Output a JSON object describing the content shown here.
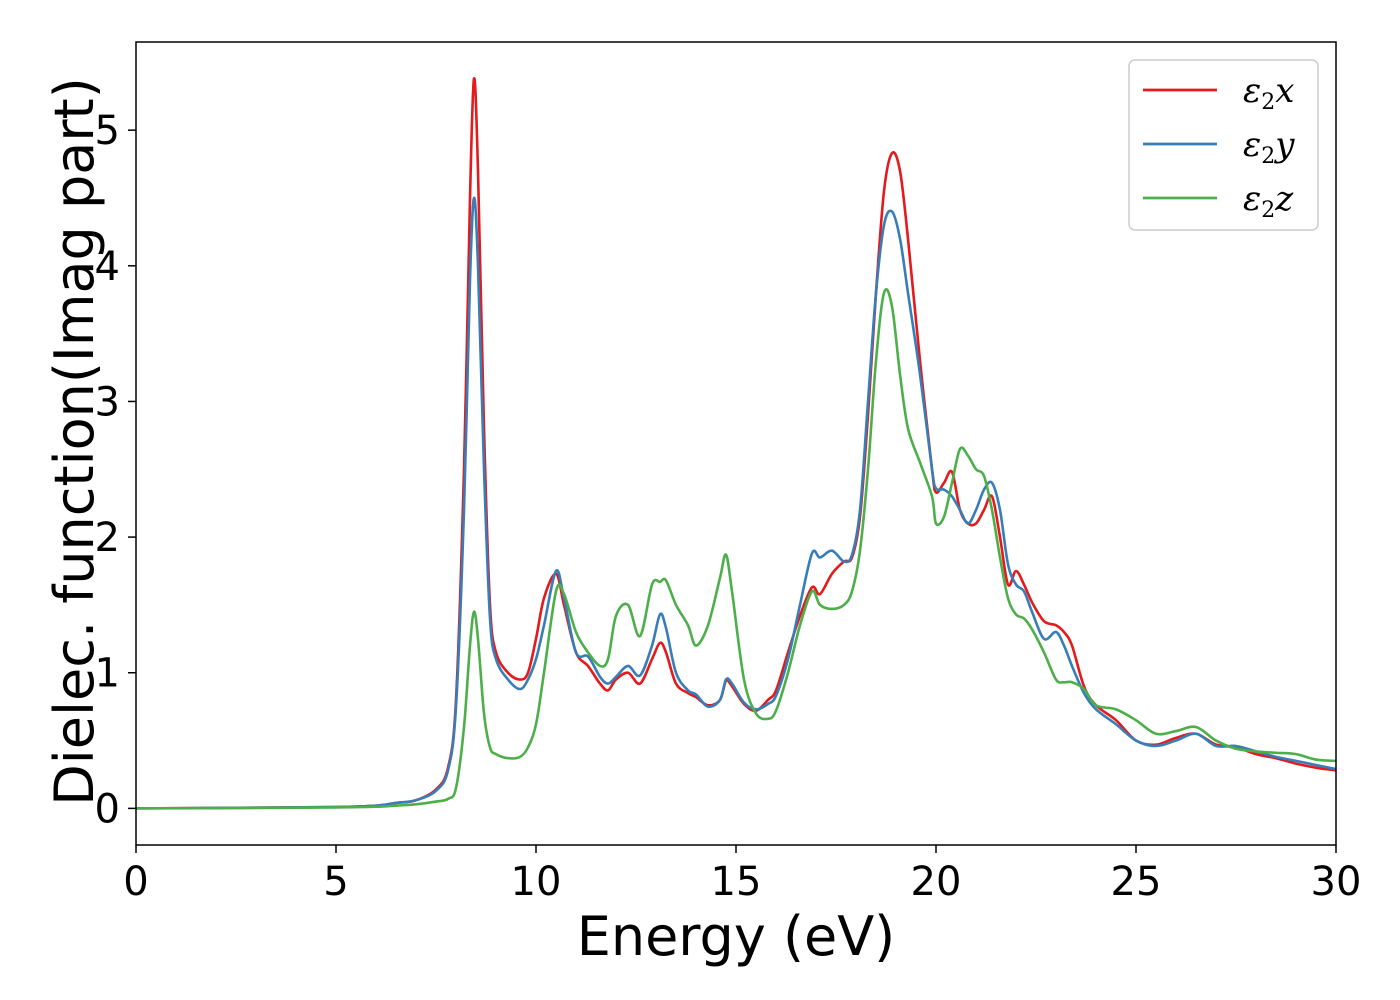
{
  "chart_data": {
    "type": "line",
    "xlabel": "Energy (eV)",
    "ylabel": "Dielec. function(Imag part)",
    "xlim": [
      0,
      30
    ],
    "ylim": [
      -0.27,
      5.65
    ],
    "xticks": [
      "0",
      "5",
      "10",
      "15",
      "20",
      "25",
      "30"
    ],
    "yticks": [
      "0",
      "1",
      "2",
      "3",
      "4",
      "5"
    ],
    "grid": false,
    "legend_position": "top-right",
    "series": [
      {
        "name": "ε₂x",
        "legend_main": "ε",
        "legend_sub": "2",
        "legend_tail": "x",
        "color": "#e41a1c",
        "x": [
          0,
          3,
          5,
          6,
          6.5,
          7,
          7.5,
          7.8,
          8.0,
          8.2,
          8.35,
          8.45,
          8.55,
          8.7,
          8.85,
          9.0,
          9.3,
          9.6,
          9.8,
          10.0,
          10.2,
          10.5,
          10.7,
          11.0,
          11.3,
          11.6,
          11.8,
          12.0,
          12.3,
          12.6,
          12.9,
          13.1,
          13.25,
          13.5,
          13.8,
          14.0,
          14.3,
          14.6,
          14.75,
          14.9,
          15.2,
          15.5,
          15.8,
          16.0,
          16.3,
          16.6,
          16.9,
          17.1,
          17.4,
          17.7,
          17.9,
          18.1,
          18.3,
          18.5,
          18.7,
          18.9,
          19.1,
          19.3,
          19.6,
          19.9,
          20.0,
          20.2,
          20.4,
          20.6,
          20.8,
          21.0,
          21.2,
          21.4,
          21.6,
          21.8,
          22.0,
          22.2,
          22.4,
          22.7,
          23.0,
          23.2,
          23.4,
          23.7,
          24.0,
          24.5,
          25.0,
          25.5,
          26.0,
          26.5,
          27.0,
          27.5,
          28.0,
          28.5,
          29.0,
          29.5,
          30.0
        ],
        "y": [
          0,
          0.005,
          0.01,
          0.02,
          0.04,
          0.06,
          0.14,
          0.3,
          0.8,
          2.5,
          4.5,
          5.38,
          4.7,
          2.8,
          1.5,
          1.15,
          1.0,
          0.95,
          1.0,
          1.25,
          1.55,
          1.73,
          1.5,
          1.15,
          1.05,
          0.92,
          0.87,
          0.95,
          1.0,
          0.92,
          1.1,
          1.22,
          1.15,
          0.92,
          0.85,
          0.82,
          0.76,
          0.8,
          0.94,
          0.9,
          0.77,
          0.72,
          0.8,
          0.87,
          1.15,
          1.42,
          1.63,
          1.58,
          1.73,
          1.82,
          1.85,
          2.15,
          2.9,
          3.8,
          4.55,
          4.83,
          4.7,
          4.2,
          3.3,
          2.5,
          2.33,
          2.4,
          2.48,
          2.2,
          2.1,
          2.1,
          2.2,
          2.3,
          2.0,
          1.65,
          1.75,
          1.65,
          1.52,
          1.38,
          1.35,
          1.3,
          1.2,
          0.9,
          0.76,
          0.65,
          0.5,
          0.47,
          0.52,
          0.55,
          0.47,
          0.45,
          0.4,
          0.37,
          0.33,
          0.3,
          0.28
        ]
      },
      {
        "name": "ε₂y",
        "legend_main": "ε",
        "legend_sub": "2",
        "legend_tail": "y",
        "color": "#377eb8",
        "x": [
          0,
          3,
          5,
          6,
          6.5,
          7,
          7.5,
          7.8,
          8.0,
          8.2,
          8.35,
          8.45,
          8.55,
          8.7,
          8.85,
          9.0,
          9.3,
          9.6,
          9.8,
          10.0,
          10.2,
          10.5,
          10.7,
          11.0,
          11.3,
          11.6,
          11.8,
          12.0,
          12.3,
          12.6,
          12.9,
          13.1,
          13.25,
          13.5,
          13.8,
          14.0,
          14.3,
          14.6,
          14.75,
          14.9,
          15.2,
          15.5,
          15.8,
          16.0,
          16.3,
          16.6,
          16.9,
          17.1,
          17.4,
          17.7,
          17.9,
          18.1,
          18.3,
          18.5,
          18.7,
          18.9,
          19.1,
          19.3,
          19.6,
          19.9,
          20.0,
          20.2,
          20.4,
          20.6,
          20.8,
          21.0,
          21.2,
          21.4,
          21.6,
          21.8,
          22.0,
          22.2,
          22.4,
          22.7,
          23.0,
          23.2,
          23.4,
          23.7,
          24.0,
          24.5,
          25.0,
          25.5,
          26.0,
          26.5,
          27.0,
          27.5,
          28.0,
          28.5,
          29.0,
          29.5,
          30.0
        ],
        "y": [
          0,
          0.005,
          0.01,
          0.02,
          0.04,
          0.06,
          0.13,
          0.28,
          0.75,
          2.2,
          3.9,
          4.5,
          4.0,
          2.5,
          1.4,
          1.1,
          0.95,
          0.88,
          0.95,
          1.1,
          1.35,
          1.75,
          1.55,
          1.15,
          1.12,
          0.97,
          0.92,
          0.97,
          1.05,
          0.98,
          1.2,
          1.43,
          1.33,
          1.0,
          0.87,
          0.84,
          0.75,
          0.8,
          0.95,
          0.92,
          0.78,
          0.73,
          0.77,
          0.83,
          1.1,
          1.5,
          1.88,
          1.85,
          1.9,
          1.82,
          1.87,
          2.2,
          3.0,
          3.8,
          4.3,
          4.4,
          4.2,
          3.8,
          3.2,
          2.5,
          2.36,
          2.35,
          2.3,
          2.2,
          2.1,
          2.2,
          2.35,
          2.4,
          2.2,
          1.8,
          1.65,
          1.6,
          1.45,
          1.25,
          1.3,
          1.2,
          1.05,
          0.85,
          0.73,
          0.62,
          0.5,
          0.46,
          0.5,
          0.55,
          0.46,
          0.46,
          0.42,
          0.38,
          0.35,
          0.32,
          0.29
        ]
      },
      {
        "name": "ε₂z",
        "legend_main": "ε",
        "legend_sub": "2",
        "legend_tail": "z",
        "color": "#4daf4a",
        "x": [
          0,
          3,
          5,
          6,
          6.5,
          7,
          7.5,
          7.8,
          8.0,
          8.2,
          8.35,
          8.45,
          8.55,
          8.7,
          8.85,
          9.0,
          9.3,
          9.6,
          9.8,
          10.0,
          10.2,
          10.5,
          10.7,
          11.0,
          11.3,
          11.6,
          11.8,
          12.0,
          12.3,
          12.6,
          12.9,
          13.1,
          13.25,
          13.5,
          13.8,
          14.0,
          14.3,
          14.6,
          14.75,
          14.9,
          15.2,
          15.5,
          15.8,
          16.0,
          16.3,
          16.6,
          16.9,
          17.1,
          17.4,
          17.7,
          17.9,
          18.1,
          18.3,
          18.5,
          18.7,
          18.9,
          19.1,
          19.3,
          19.6,
          19.9,
          20.0,
          20.2,
          20.4,
          20.6,
          20.8,
          21.0,
          21.2,
          21.4,
          21.6,
          21.8,
          22.0,
          22.2,
          22.4,
          22.7,
          23.0,
          23.2,
          23.4,
          23.7,
          24.0,
          24.5,
          25.0,
          25.5,
          26.0,
          26.5,
          27.0,
          27.5,
          28.0,
          28.5,
          29.0,
          29.5,
          30.0
        ],
        "y": [
          0,
          0.003,
          0.007,
          0.012,
          0.02,
          0.03,
          0.05,
          0.07,
          0.15,
          0.6,
          1.2,
          1.45,
          1.25,
          0.7,
          0.45,
          0.4,
          0.37,
          0.38,
          0.45,
          0.62,
          1.0,
          1.6,
          1.58,
          1.3,
          1.15,
          1.05,
          1.1,
          1.42,
          1.5,
          1.27,
          1.65,
          1.67,
          1.68,
          1.5,
          1.35,
          1.2,
          1.35,
          1.7,
          1.87,
          1.6,
          0.95,
          0.7,
          0.66,
          0.72,
          1.0,
          1.35,
          1.6,
          1.5,
          1.47,
          1.5,
          1.6,
          1.9,
          2.5,
          3.3,
          3.8,
          3.7,
          3.2,
          2.8,
          2.55,
          2.3,
          2.1,
          2.15,
          2.4,
          2.65,
          2.6,
          2.5,
          2.45,
          2.2,
          1.85,
          1.55,
          1.43,
          1.4,
          1.32,
          1.15,
          0.95,
          0.93,
          0.93,
          0.88,
          0.76,
          0.73,
          0.65,
          0.55,
          0.57,
          0.6,
          0.5,
          0.44,
          0.42,
          0.41,
          0.4,
          0.36,
          0.35
        ]
      }
    ]
  }
}
